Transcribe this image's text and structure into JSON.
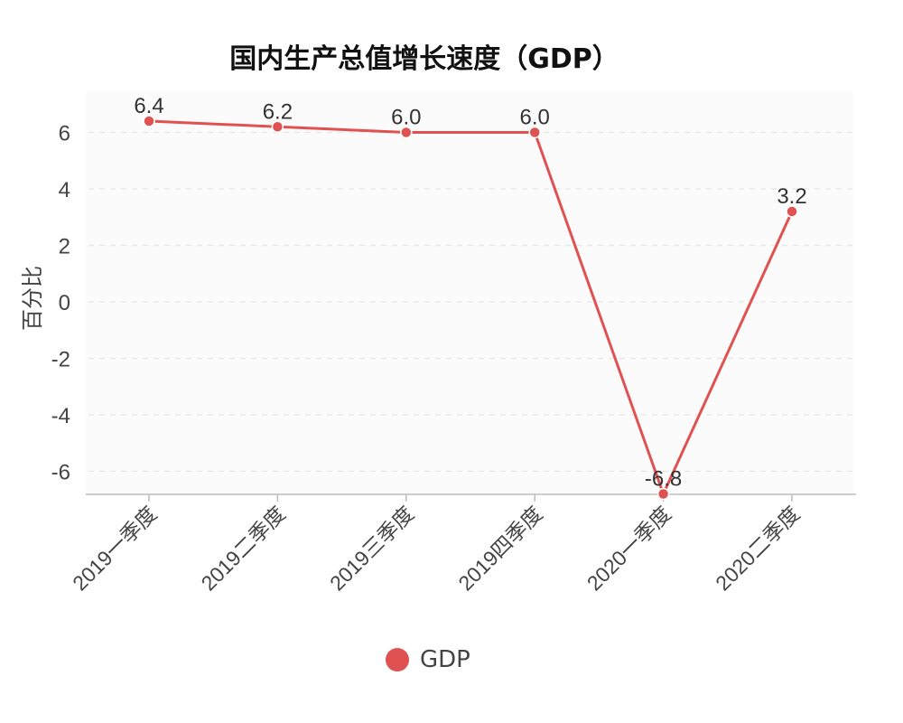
{
  "chart_data": {
    "type": "line",
    "title": "国内生产总值增长速度（GDP）",
    "xlabel": "",
    "ylabel": "百分比",
    "categories": [
      "2019一季度",
      "2019二季度",
      "2019三季度",
      "2019四季度",
      "2020一季度",
      "2020二季度"
    ],
    "series": [
      {
        "name": "GDP",
        "values": [
          6.4,
          6.2,
          6.0,
          6.0,
          -6.8,
          3.2
        ],
        "labels": [
          "6.4",
          "6.2",
          "6.0",
          "6.0",
          "-6.8",
          "3.2"
        ],
        "color": "#e05252"
      }
    ],
    "yticks": [
      6,
      4,
      2,
      0,
      -2,
      -4,
      -6
    ],
    "ylim": [
      -6.8,
      7.2
    ],
    "grid": true,
    "legend_position": "bottom-center"
  }
}
